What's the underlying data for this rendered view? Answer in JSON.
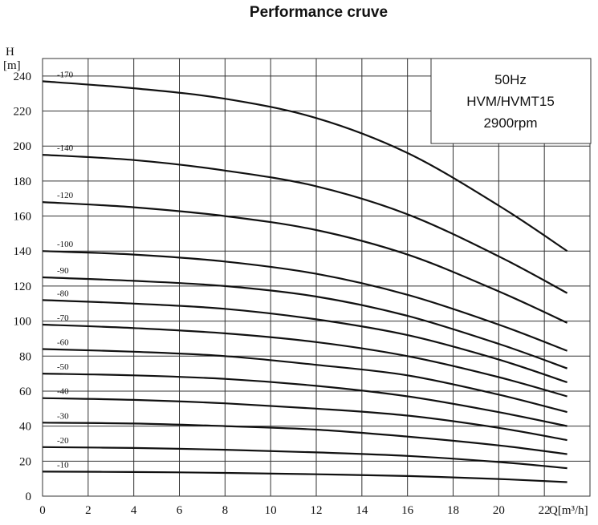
{
  "chart_data": {
    "type": "line",
    "title": "Performance cruve",
    "ylabel_top": "H",
    "ylabel_unit": "[m]",
    "xlabel": "Q[m³/h]",
    "xlim": [
      0,
      24
    ],
    "ylim": [
      0,
      250
    ],
    "x_ticks": [
      0,
      2,
      4,
      6,
      8,
      10,
      12,
      14,
      16,
      18,
      20,
      22
    ],
    "y_ticks": [
      0,
      20,
      40,
      60,
      80,
      100,
      120,
      140,
      160,
      180,
      200,
      220,
      240
    ],
    "grid": true,
    "info_box": [
      "50Hz",
      "HVM/HVMT15",
      "2900rpm"
    ],
    "series": [
      {
        "name": "-170",
        "x": [
          0,
          4,
          8,
          12,
          16,
          20,
          23
        ],
        "y": [
          237,
          233,
          227,
          216,
          196,
          166,
          140
        ]
      },
      {
        "name": "-140",
        "x": [
          0,
          4,
          8,
          12,
          16,
          20,
          23
        ],
        "y": [
          195,
          192,
          186,
          177,
          161,
          137,
          116
        ]
      },
      {
        "name": "-120",
        "x": [
          0,
          4,
          8,
          12,
          16,
          20,
          23
        ],
        "y": [
          168,
          165,
          160,
          152,
          138,
          117,
          99
        ]
      },
      {
        "name": "-100",
        "x": [
          0,
          4,
          8,
          12,
          16,
          20,
          23
        ],
        "y": [
          140,
          138,
          134,
          127,
          115,
          98,
          83
        ]
      },
      {
        "name": "-90",
        "x": [
          0,
          4,
          8,
          12,
          16,
          20,
          23
        ],
        "y": [
          125,
          123,
          120,
          114,
          103,
          87,
          73
        ]
      },
      {
        "name": "-80",
        "x": [
          0,
          4,
          8,
          12,
          16,
          20,
          23
        ],
        "y": [
          112,
          110,
          107,
          101,
          92,
          78,
          65
        ]
      },
      {
        "name": "-70",
        "x": [
          0,
          4,
          8,
          12,
          16,
          20,
          23
        ],
        "y": [
          98,
          96,
          93,
          88,
          80,
          68,
          57
        ]
      },
      {
        "name": "-60",
        "x": [
          0,
          4,
          8,
          12,
          16,
          20,
          23
        ],
        "y": [
          84,
          82.5,
          80,
          75,
          69,
          58,
          48
        ]
      },
      {
        "name": "-50",
        "x": [
          0,
          4,
          8,
          12,
          16,
          20,
          23
        ],
        "y": [
          70,
          69,
          67,
          63,
          57,
          48,
          40
        ]
      },
      {
        "name": "-40",
        "x": [
          0,
          4,
          8,
          12,
          16,
          20,
          23
        ],
        "y": [
          56,
          55,
          53,
          50,
          46,
          39,
          32
        ]
      },
      {
        "name": "-30",
        "x": [
          0,
          4,
          8,
          12,
          16,
          20,
          23
        ],
        "y": [
          42,
          41.5,
          40,
          38,
          34,
          29,
          24
        ]
      },
      {
        "name": "-20",
        "x": [
          0,
          4,
          8,
          12,
          16,
          20,
          23
        ],
        "y": [
          28,
          27.5,
          26.5,
          25,
          23,
          19.5,
          16
        ]
      },
      {
        "name": "-10",
        "x": [
          0,
          4,
          8,
          12,
          16,
          20,
          23
        ],
        "y": [
          14,
          13.8,
          13.3,
          12.5,
          11.5,
          9.8,
          8
        ]
      }
    ]
  }
}
